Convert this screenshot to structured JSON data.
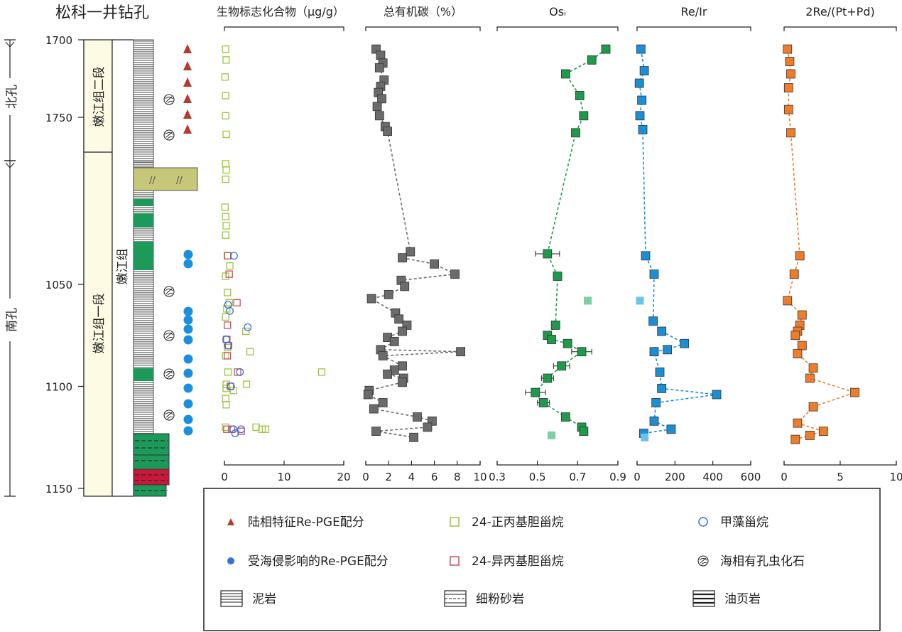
{
  "figure": {
    "title": "松科一井钻孔",
    "sections": [
      {
        "label": "北孔",
        "range": [
          1700,
          1770
        ]
      },
      {
        "label": "南孔",
        "range": [
          1770,
          1155
        ]
      }
    ],
    "units": [
      {
        "label": "嫩江组二段",
        "top": 1700,
        "bottom": 1755
      },
      {
        "label": "嫩江组一段",
        "top": 1755,
        "bottom": 1155
      },
      {
        "label": "嫩江组",
        "top": 1700,
        "bottom": 1155
      }
    ],
    "depth_axis": {
      "ticks": [
        1700,
        1750,
        1050,
        1100,
        1150
      ]
    },
    "colors": {
      "mudstone": "#8c8c8c",
      "green": "#1d9a5a",
      "red": "#c8183c",
      "unitfill": "#fdfbe3",
      "tri": "#b33a2f",
      "dot": "#1a8fe0",
      "ster_green": "#9ac53a",
      "ster_red": "#d14b55",
      "ster_blue": "#3b6fd8",
      "toc": "#6b6b6b",
      "os": "#1d9a4a",
      "reir": "#1b8ed6",
      "repd": "#f07c2a",
      "lightgreen": "#7fd0a0",
      "lightblue": "#6cc3ea",
      "oil": "#c7c77a"
    }
  },
  "chart_data": [
    {
      "type": "scatter",
      "id": "biomarker",
      "title": "生物标志化合物（μg/g）",
      "xlim": [
        0,
        20
      ],
      "xticks": [
        0,
        10,
        20
      ],
      "series": [
        {
          "name": "24-正丙基胆甾烷",
          "marker": "square-open",
          "color": "#9ac53a",
          "points": [
            [
              0.2,
              1706
            ],
            [
              0.3,
              1713
            ],
            [
              0.1,
              1724
            ],
            [
              0.2,
              1736
            ],
            [
              0.2,
              1749
            ],
            [
              0.3,
              1761
            ],
            [
              0.2,
              1780
            ],
            [
              0.3,
              1784
            ],
            [
              0.2,
              1790
            ],
            [
              0.1,
              1808
            ],
            [
              0.2,
              1814
            ],
            [
              0.3,
              1820
            ],
            [
              0.2,
              1826
            ],
            [
              0.6,
              1036
            ],
            [
              0.9,
              1041
            ],
            [
              0.2,
              1046
            ],
            [
              0.5,
              1054
            ],
            [
              0.8,
              1059
            ],
            [
              0.4,
              1062
            ],
            [
              0.2,
              1066
            ],
            [
              3.6,
              1073
            ],
            [
              0.3,
              1077
            ],
            [
              0.5,
              1081
            ],
            [
              4.3,
              1083
            ],
            [
              0.2,
              1085
            ],
            [
              0.6,
              1093
            ],
            [
              0.3,
              1099
            ],
            [
              0.3,
              1101
            ],
            [
              1.5,
              1102
            ],
            [
              3.7,
              1099
            ],
            [
              0.2,
              1106
            ],
            [
              0.3,
              1109
            ],
            [
              0.2,
              1120
            ],
            [
              5.3,
              1120
            ],
            [
              6.3,
              1121
            ],
            [
              6.9,
              1121
            ],
            [
              16.3,
              1093
            ]
          ]
        },
        {
          "name": "24-异丙基胆甾烷",
          "marker": "square-open",
          "color": "#d14b55",
          "points": [
            [
              0.5,
              1036
            ],
            [
              0.8,
              1045
            ],
            [
              2.1,
              1059
            ],
            [
              0.5,
              1070
            ],
            [
              0.4,
              1077
            ],
            [
              0.7,
              1080
            ],
            [
              0.5,
              1085
            ],
            [
              2.2,
              1093
            ],
            [
              1.0,
              1100
            ],
            [
              1.2,
              1121
            ],
            [
              2.8,
              1122
            ],
            [
              0.4,
              1121
            ]
          ]
        },
        {
          "name": "甲藻甾烷",
          "marker": "circle-open",
          "color": "#3b6fd8",
          "points": [
            [
              1.6,
              1036
            ],
            [
              0.6,
              1060
            ],
            [
              0.9,
              1063
            ],
            [
              3.9,
              1071
            ],
            [
              0.3,
              1077
            ],
            [
              0.6,
              1080
            ],
            [
              2.6,
              1093
            ],
            [
              1.1,
              1100
            ],
            [
              2.8,
              1121
            ],
            [
              1.5,
              1121
            ],
            [
              1.8,
              1123
            ]
          ]
        }
      ]
    },
    {
      "type": "line",
      "id": "toc",
      "title": "总有机碳（%）",
      "xlim": [
        0,
        10
      ],
      "xticks": [
        0,
        2,
        4,
        6,
        8,
        10
      ],
      "series": [
        {
          "name": "TOC",
          "marker": "square",
          "points": [
            [
              0.9,
              1706
            ],
            [
              1.3,
              1710
            ],
            [
              1.5,
              1715
            ],
            [
              1.2,
              1718
            ],
            [
              1.6,
              1726
            ],
            [
              1.3,
              1730
            ],
            [
              1.1,
              1734
            ],
            [
              1.4,
              1738
            ],
            [
              1.0,
              1743
            ],
            [
              1.2,
              1749
            ],
            [
              1.7,
              1756
            ],
            [
              1.9,
              1759
            ],
            [
              3.9,
              1034
            ],
            [
              3.2,
              1037
            ],
            [
              6.0,
              1040
            ],
            [
              7.8,
              1045
            ],
            [
              3.1,
              1048
            ],
            [
              3.4,
              1051
            ],
            [
              2.0,
              1055
            ],
            [
              0.5,
              1057
            ],
            [
              2.6,
              1064
            ],
            [
              2.9,
              1067
            ],
            [
              3.6,
              1070
            ],
            [
              3.2,
              1073
            ],
            [
              1.9,
              1076
            ],
            [
              2.5,
              1078
            ],
            [
              1.3,
              1082
            ],
            [
              8.3,
              1083
            ],
            [
              1.5,
              1085
            ],
            [
              3.2,
              1090
            ],
            [
              2.5,
              1092
            ],
            [
              1.9,
              1094
            ],
            [
              3.3,
              1096
            ],
            [
              3.2,
              1098
            ],
            [
              0.3,
              1102
            ],
            [
              0.2,
              1104
            ],
            [
              1.5,
              1108
            ],
            [
              0.7,
              1111
            ],
            [
              4.5,
              1115
            ],
            [
              5.8,
              1117
            ],
            [
              5.4,
              1120
            ],
            [
              0.9,
              1122
            ],
            [
              4.2,
              1125
            ]
          ]
        }
      ]
    },
    {
      "type": "line",
      "id": "os",
      "title": "Osᵢ",
      "xlim": [
        0.3,
        0.9
      ],
      "xticks": [
        0.3,
        0.5,
        0.7,
        0.9
      ],
      "series": [
        {
          "name": "Osi",
          "marker": "square",
          "points": [
            [
              0.84,
              1706
            ],
            [
              0.77,
              1713
            ],
            [
              0.64,
              1722
            ],
            [
              0.71,
              1736
            ],
            [
              0.73,
              1749
            ],
            [
              0.69,
              1760
            ],
            {
              "x": 0.55,
              "y": 1035,
              "err": 0.06
            },
            {
              "x": 0.6,
              "y": 1046,
              "err": 0.02
            },
            {
              "x": 0.59,
              "y": 1070,
              "err": 0.02
            },
            {
              "x": 0.55,
              "y": 1075,
              "err": 0.02
            },
            {
              "x": 0.57,
              "y": 1077,
              "err": 0.02
            },
            {
              "x": 0.65,
              "y": 1079,
              "err": 0.02
            },
            {
              "x": 0.72,
              "y": 1083,
              "err": 0.05
            },
            {
              "x": 0.62,
              "y": 1090,
              "err": 0.04
            },
            {
              "x": 0.55,
              "y": 1096,
              "err": 0.03
            },
            {
              "x": 0.49,
              "y": 1103,
              "err": 0.05
            },
            {
              "x": 0.53,
              "y": 1108,
              "err": 0.03
            },
            {
              "x": 0.64,
              "y": 1115
            },
            {
              "x": 0.72,
              "y": 1120
            },
            {
              "x": 0.73,
              "y": 1122
            }
          ]
        },
        {
          "name": "outliers",
          "marker": "square-light",
          "points": [
            [
              0.75,
              1058
            ],
            [
              0.57,
              1124
            ]
          ]
        }
      ]
    },
    {
      "type": "line",
      "id": "reir",
      "title": "Re/Ir",
      "xlim": [
        0,
        600
      ],
      "xticks": [
        0,
        200,
        400,
        600
      ],
      "series": [
        {
          "name": "Re/Ir",
          "marker": "square",
          "points": [
            [
              20,
              1706
            ],
            [
              38,
              1720
            ],
            [
              12,
              1728
            ],
            [
              25,
              1739
            ],
            [
              15,
              1749
            ],
            [
              30,
              1758
            ],
            [
              45,
              1036
            ],
            [
              90,
              1045
            ],
            [
              85,
              1068
            ],
            [
              130,
              1073
            ],
            [
              250,
              1079
            ],
            [
              160,
              1082
            ],
            [
              90,
              1083
            ],
            [
              120,
              1093
            ],
            [
              130,
              1101
            ],
            [
              420,
              1104
            ],
            [
              100,
              1108
            ],
            [
              90,
              1117
            ],
            [
              180,
              1121
            ],
            [
              35,
              1123
            ]
          ]
        },
        {
          "name": "outliers",
          "marker": "square-light",
          "points": [
            [
              15,
              1058
            ],
            [
              40,
              1125
            ]
          ]
        }
      ]
    },
    {
      "type": "line",
      "id": "repd",
      "title": "2Re/(Pt+Pd)",
      "xlim": [
        0,
        10
      ],
      "xticks": [
        0,
        5,
        10
      ],
      "series": [
        {
          "name": "2Re/(Pt+Pd)",
          "marker": "square",
          "points": [
            [
              0.3,
              1706
            ],
            [
              0.5,
              1714
            ],
            [
              0.6,
              1722
            ],
            [
              0.4,
              1731
            ],
            [
              0.4,
              1745
            ],
            [
              0.6,
              1760
            ],
            [
              1.4,
              1036
            ],
            [
              0.9,
              1045
            ],
            [
              0.3,
              1058
            ],
            [
              1.6,
              1065
            ],
            [
              1.4,
              1070
            ],
            [
              1.2,
              1073
            ],
            [
              1.0,
              1075
            ],
            [
              1.6,
              1080
            ],
            [
              1.2,
              1084
            ],
            [
              2.6,
              1091
            ],
            [
              2.3,
              1096
            ],
            [
              6.3,
              1103
            ],
            [
              2.6,
              1110
            ],
            [
              1.2,
              1118
            ],
            [
              3.5,
              1122
            ],
            [
              2.3,
              1124
            ],
            [
              1.0,
              1126
            ]
          ]
        }
      ]
    }
  ],
  "legend": {
    "items": [
      {
        "label": "陆相特征Re-PGE配分",
        "symbol": "triangle"
      },
      {
        "label": "24-正丙基胆甾烷",
        "symbol": "square-green"
      },
      {
        "label": "甲藻甾烷",
        "symbol": "circle-blue"
      },
      {
        "label": "受海侵影响的Re-PGE配分",
        "symbol": "dot-blue"
      },
      {
        "label": "24-异丙基胆甾烷",
        "symbol": "square-red"
      },
      {
        "label": "海相有孔虫化石",
        "symbol": "foram"
      },
      {
        "label": "泥岩",
        "symbol": "mudstone"
      },
      {
        "label": "细粉砂岩",
        "symbol": "siltstone"
      },
      {
        "label": "油页岩",
        "symbol": "oilshale"
      }
    ]
  }
}
